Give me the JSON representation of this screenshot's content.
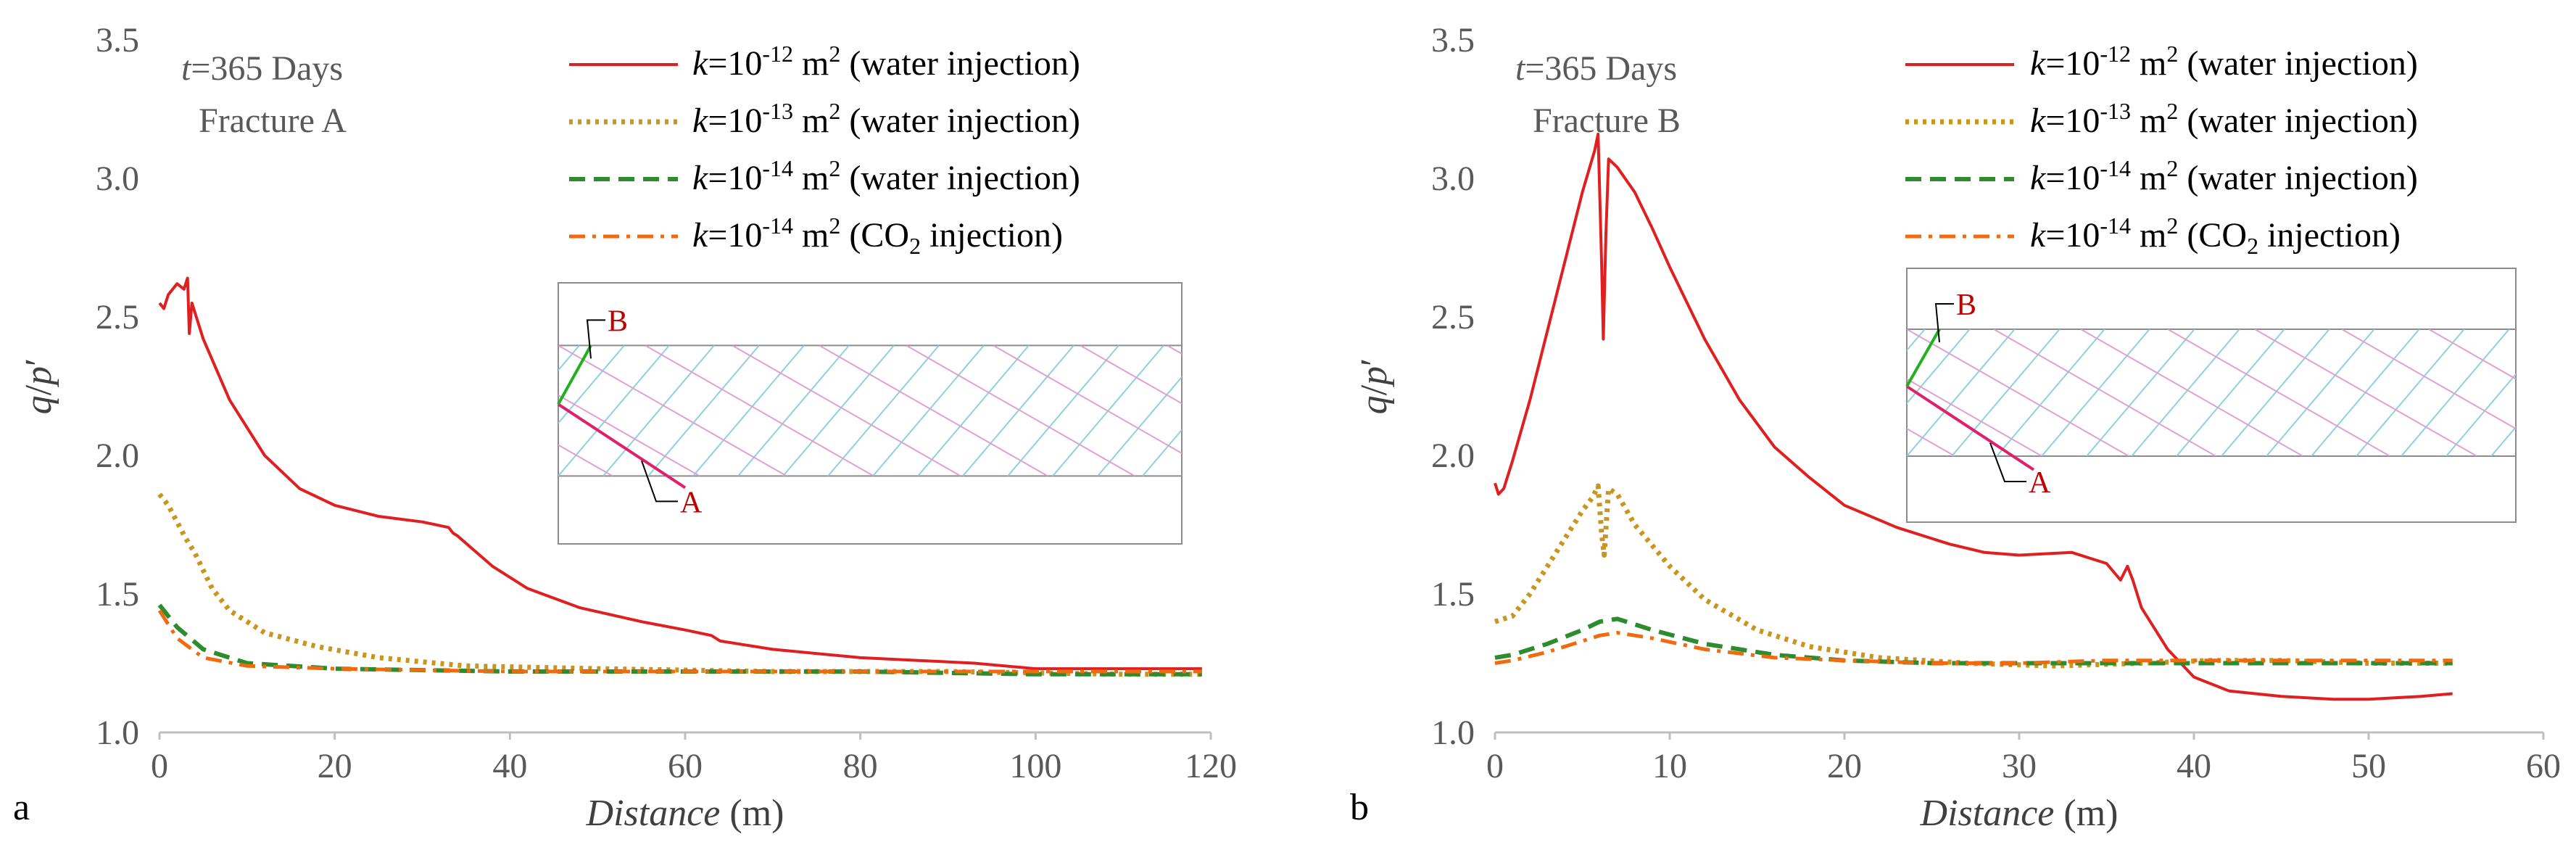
{
  "chart_data": [
    {
      "panel_label": "a",
      "type": "line",
      "annotation": {
        "t_symbol": "t",
        "t_text": "=365 Days",
        "fracture": "Fracture A"
      },
      "xlabel_italic": "Distance",
      "xlabel_unit": "(m)",
      "ylabel_parts": [
        "q",
        "/",
        "p",
        "′"
      ],
      "xlim": [
        0,
        120
      ],
      "ylim": [
        1.0,
        3.5
      ],
      "xticks": [
        0,
        20,
        40,
        60,
        80,
        100,
        120
      ],
      "yticks": [
        "1.0",
        "1.5",
        "2.0",
        "2.5",
        "3.0",
        "3.5"
      ],
      "series": [
        {
          "name": "k=10^-12 m^2 (water injection)",
          "legend": {
            "k": "k",
            "base": "=10",
            "exp": "-12",
            "unit": " m",
            "unit_exp": "2",
            "sub": "",
            "rest": "",
            "desc": " (water injection)"
          },
          "color": "#e02020",
          "style": "solid",
          "points": [
            [
              0,
              2.55
            ],
            [
              0.5,
              2.53
            ],
            [
              1,
              2.58
            ],
            [
              2,
              2.62
            ],
            [
              2.8,
              2.6
            ],
            [
              3.2,
              2.64
            ],
            [
              3.4,
              2.44
            ],
            [
              3.7,
              2.55
            ],
            [
              5,
              2.42
            ],
            [
              8,
              2.2
            ],
            [
              12,
              2.0
            ],
            [
              16,
              1.88
            ],
            [
              20,
              1.82
            ],
            [
              25,
              1.78
            ],
            [
              30,
              1.76
            ],
            [
              33,
              1.74
            ],
            [
              33.5,
              1.72
            ],
            [
              34,
              1.71
            ],
            [
              38,
              1.6
            ],
            [
              42,
              1.52
            ],
            [
              48,
              1.45
            ],
            [
              55,
              1.4
            ],
            [
              60,
              1.37
            ],
            [
              63,
              1.35
            ],
            [
              64,
              1.33
            ],
            [
              70,
              1.3
            ],
            [
              80,
              1.27
            ],
            [
              93,
              1.25
            ],
            [
              100,
              1.23
            ],
            [
              110,
              1.23
            ],
            [
              119,
              1.23
            ]
          ]
        },
        {
          "name": "k=10^-13 m^2 (water injection)",
          "legend": {
            "k": "k",
            "base": "=10",
            "exp": "-13",
            "unit": " m",
            "unit_exp": "2",
            "sub": "",
            "rest": "",
            "desc": " (water injection)"
          },
          "color": "#c8961e",
          "style": "dotted",
          "points": [
            [
              0,
              1.86
            ],
            [
              1,
              1.82
            ],
            [
              2,
              1.76
            ],
            [
              3,
              1.7
            ],
            [
              4,
              1.65
            ],
            [
              6,
              1.52
            ],
            [
              8,
              1.44
            ],
            [
              12,
              1.36
            ],
            [
              18,
              1.31
            ],
            [
              25,
              1.27
            ],
            [
              35,
              1.24
            ],
            [
              50,
              1.23
            ],
            [
              70,
              1.22
            ],
            [
              90,
              1.22
            ],
            [
              110,
              1.21
            ],
            [
              119,
              1.21
            ]
          ]
        },
        {
          "name": "k=10^-14 m^2 (water injection)",
          "legend": {
            "k": "k",
            "base": "=10",
            "exp": "-14",
            "unit": " m",
            "unit_exp": "2",
            "sub": "",
            "rest": "",
            "desc": " (water injection)"
          },
          "color": "#2e8b2e",
          "style": "dashed",
          "points": [
            [
              0,
              1.46
            ],
            [
              2,
              1.38
            ],
            [
              5,
              1.3
            ],
            [
              10,
              1.25
            ],
            [
              20,
              1.23
            ],
            [
              40,
              1.22
            ],
            [
              60,
              1.22
            ],
            [
              80,
              1.22
            ],
            [
              100,
              1.21
            ],
            [
              119,
              1.21
            ]
          ]
        },
        {
          "name": "k=10^-14 m^2 (CO2 injection)",
          "legend": {
            "k": "k",
            "base": "=10",
            "exp": "-14",
            "unit": " m",
            "unit_exp": "2",
            "sub": "",
            "rest": " (CO",
            "desc": "",
            "sub_after": "2",
            "tail": " injection)"
          },
          "color": "#f06a10",
          "style": "dashdot",
          "points": [
            [
              0,
              1.44
            ],
            [
              2,
              1.34
            ],
            [
              5,
              1.27
            ],
            [
              10,
              1.24
            ],
            [
              20,
              1.23
            ],
            [
              40,
              1.22
            ],
            [
              60,
              1.22
            ],
            [
              80,
              1.22
            ],
            [
              100,
              1.22
            ],
            [
              119,
              1.22
            ]
          ]
        }
      ],
      "inset": {
        "label_A": "A",
        "label_B": "B"
      }
    },
    {
      "panel_label": "b",
      "type": "line",
      "annotation": {
        "t_symbol": "t",
        "t_text": "=365 Days",
        "fracture": "Fracture B"
      },
      "xlabel_italic": "Distance",
      "xlabel_unit": "(m)",
      "ylabel_parts": [
        "q",
        "/",
        "p",
        "′"
      ],
      "xlim": [
        0,
        60
      ],
      "ylim": [
        1.0,
        3.5
      ],
      "xticks": [
        0,
        10,
        20,
        30,
        40,
        50,
        60
      ],
      "yticks": [
        "1.0",
        "1.5",
        "2.0",
        "2.5",
        "3.0",
        "3.5"
      ],
      "series": [
        {
          "name": "k=10^-12 m^2 (water injection)",
          "color": "#e02020",
          "style": "solid",
          "points": [
            [
              0,
              1.9
            ],
            [
              0.2,
              1.86
            ],
            [
              0.5,
              1.88
            ],
            [
              1,
              1.98
            ],
            [
              2,
              2.2
            ],
            [
              3,
              2.45
            ],
            [
              4,
              2.7
            ],
            [
              5,
              2.95
            ],
            [
              5.7,
              3.1
            ],
            [
              5.9,
              3.16
            ],
            [
              6.1,
              2.7
            ],
            [
              6.2,
              2.42
            ],
            [
              6.35,
              2.8
            ],
            [
              6.5,
              3.07
            ],
            [
              7,
              3.04
            ],
            [
              8,
              2.95
            ],
            [
              9,
              2.82
            ],
            [
              10,
              2.68
            ],
            [
              12,
              2.42
            ],
            [
              14,
              2.2
            ],
            [
              16,
              2.03
            ],
            [
              18,
              1.92
            ],
            [
              20,
              1.82
            ],
            [
              23,
              1.74
            ],
            [
              26,
              1.68
            ],
            [
              28,
              1.65
            ],
            [
              30,
              1.64
            ],
            [
              33,
              1.65
            ],
            [
              35,
              1.61
            ],
            [
              35.8,
              1.55
            ],
            [
              36.2,
              1.6
            ],
            [
              36.5,
              1.55
            ],
            [
              37,
              1.45
            ],
            [
              38.5,
              1.3
            ],
            [
              40,
              1.2
            ],
            [
              42,
              1.15
            ],
            [
              45,
              1.13
            ],
            [
              48,
              1.12
            ],
            [
              50,
              1.12
            ],
            [
              53,
              1.13
            ],
            [
              54.8,
              1.14
            ]
          ]
        },
        {
          "name": "k=10^-13 m^2 (water injection)",
          "color": "#c8961e",
          "style": "dotted",
          "points": [
            [
              0,
              1.4
            ],
            [
              1,
              1.42
            ],
            [
              2,
              1.5
            ],
            [
              3,
              1.6
            ],
            [
              4,
              1.7
            ],
            [
              5,
              1.8
            ],
            [
              5.6,
              1.85
            ],
            [
              5.9,
              1.89
            ],
            [
              6.1,
              1.72
            ],
            [
              6.25,
              1.64
            ],
            [
              6.5,
              1.88
            ],
            [
              7,
              1.86
            ],
            [
              8,
              1.75
            ],
            [
              10,
              1.6
            ],
            [
              12,
              1.48
            ],
            [
              15,
              1.37
            ],
            [
              18,
              1.31
            ],
            [
              22,
              1.27
            ],
            [
              27,
              1.25
            ],
            [
              32,
              1.24
            ],
            [
              37,
              1.25
            ],
            [
              41,
              1.26
            ],
            [
              45,
              1.26
            ],
            [
              50,
              1.25
            ],
            [
              54.8,
              1.25
            ]
          ]
        },
        {
          "name": "k=10^-14 m^2 (water injection)",
          "color": "#2e8b2e",
          "style": "dashed",
          "points": [
            [
              0,
              1.27
            ],
            [
              1,
              1.28
            ],
            [
              3,
              1.32
            ],
            [
              5,
              1.37
            ],
            [
              6,
              1.4
            ],
            [
              7,
              1.41
            ],
            [
              9,
              1.37
            ],
            [
              12,
              1.32
            ],
            [
              16,
              1.28
            ],
            [
              20,
              1.26
            ],
            [
              25,
              1.25
            ],
            [
              30,
              1.25
            ],
            [
              35,
              1.25
            ],
            [
              40,
              1.25
            ],
            [
              45,
              1.25
            ],
            [
              50,
              1.25
            ],
            [
              54.8,
              1.25
            ]
          ]
        },
        {
          "name": "k=10^-14 m^2 (CO2 injection)",
          "color": "#f06a10",
          "style": "dashdot",
          "points": [
            [
              0,
              1.25
            ],
            [
              1,
              1.26
            ],
            [
              3,
              1.29
            ],
            [
              5,
              1.33
            ],
            [
              6,
              1.35
            ],
            [
              7,
              1.36
            ],
            [
              9,
              1.34
            ],
            [
              12,
              1.3
            ],
            [
              16,
              1.27
            ],
            [
              20,
              1.26
            ],
            [
              25,
              1.25
            ],
            [
              30,
              1.25
            ],
            [
              35,
              1.26
            ],
            [
              40,
              1.26
            ],
            [
              45,
              1.26
            ],
            [
              50,
              1.26
            ],
            [
              54.8,
              1.26
            ]
          ]
        }
      ],
      "inset": {
        "label_A": "A",
        "label_B": "B"
      }
    }
  ]
}
